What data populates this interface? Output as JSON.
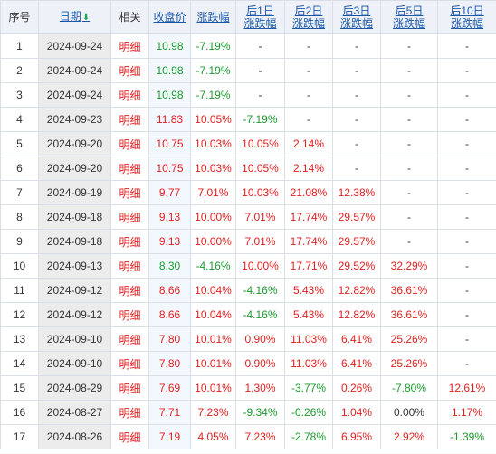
{
  "headers": {
    "idx": "序号",
    "date": "日期",
    "related": "相关",
    "close": "收盘价",
    "change": "涨跌幅",
    "d1": [
      "后1日",
      "涨跌幅"
    ],
    "d2": [
      "后2日",
      "涨跌幅"
    ],
    "d3": [
      "后3日",
      "涨跌幅"
    ],
    "d5": [
      "后5日",
      "涨跌幅"
    ],
    "d10": [
      "后10日",
      "涨跌幅"
    ]
  },
  "detail_label": "明细",
  "colors": {
    "up": "#e02020",
    "down": "#1b9a2e",
    "flat": "#333333",
    "link": "#1a57a8"
  },
  "rows": [
    {
      "idx": "1",
      "date": "2024-09-24",
      "close": "10.98",
      "change": "-7.19%",
      "d1": "-",
      "d2": "-",
      "d3": "-",
      "d5": "-",
      "d10": "-"
    },
    {
      "idx": "2",
      "date": "2024-09-24",
      "close": "10.98",
      "change": "-7.19%",
      "d1": "-",
      "d2": "-",
      "d3": "-",
      "d5": "-",
      "d10": "-"
    },
    {
      "idx": "3",
      "date": "2024-09-24",
      "close": "10.98",
      "change": "-7.19%",
      "d1": "-",
      "d2": "-",
      "d3": "-",
      "d5": "-",
      "d10": "-"
    },
    {
      "idx": "4",
      "date": "2024-09-23",
      "close": "11.83",
      "change": "10.05%",
      "d1": "-7.19%",
      "d2": "-",
      "d3": "-",
      "d5": "-",
      "d10": "-"
    },
    {
      "idx": "5",
      "date": "2024-09-20",
      "close": "10.75",
      "change": "10.03%",
      "d1": "10.05%",
      "d2": "2.14%",
      "d3": "-",
      "d5": "-",
      "d10": "-"
    },
    {
      "idx": "6",
      "date": "2024-09-20",
      "close": "10.75",
      "change": "10.03%",
      "d1": "10.05%",
      "d2": "2.14%",
      "d3": "-",
      "d5": "-",
      "d10": "-"
    },
    {
      "idx": "7",
      "date": "2024-09-19",
      "close": "9.77",
      "change": "7.01%",
      "d1": "10.03%",
      "d2": "21.08%",
      "d3": "12.38%",
      "d5": "-",
      "d10": "-"
    },
    {
      "idx": "8",
      "date": "2024-09-18",
      "close": "9.13",
      "change": "10.00%",
      "d1": "7.01%",
      "d2": "17.74%",
      "d3": "29.57%",
      "d5": "-",
      "d10": "-"
    },
    {
      "idx": "9",
      "date": "2024-09-18",
      "close": "9.13",
      "change": "10.00%",
      "d1": "7.01%",
      "d2": "17.74%",
      "d3": "29.57%",
      "d5": "-",
      "d10": "-"
    },
    {
      "idx": "10",
      "date": "2024-09-13",
      "close": "8.30",
      "change": "-4.16%",
      "d1": "10.00%",
      "d2": "17.71%",
      "d3": "29.52%",
      "d5": "32.29%",
      "d10": "-"
    },
    {
      "idx": "11",
      "date": "2024-09-12",
      "close": "8.66",
      "change": "10.04%",
      "d1": "-4.16%",
      "d2": "5.43%",
      "d3": "12.82%",
      "d5": "36.61%",
      "d10": "-"
    },
    {
      "idx": "12",
      "date": "2024-09-12",
      "close": "8.66",
      "change": "10.04%",
      "d1": "-4.16%",
      "d2": "5.43%",
      "d3": "12.82%",
      "d5": "36.61%",
      "d10": "-"
    },
    {
      "idx": "13",
      "date": "2024-09-10",
      "close": "7.80",
      "change": "10.01%",
      "d1": "0.90%",
      "d2": "11.03%",
      "d3": "6.41%",
      "d5": "25.26%",
      "d10": "-"
    },
    {
      "idx": "14",
      "date": "2024-09-10",
      "close": "7.80",
      "change": "10.01%",
      "d1": "0.90%",
      "d2": "11.03%",
      "d3": "6.41%",
      "d5": "25.26%",
      "d10": "-"
    },
    {
      "idx": "15",
      "date": "2024-08-29",
      "close": "7.69",
      "change": "10.01%",
      "d1": "1.30%",
      "d2": "-3.77%",
      "d3": "0.26%",
      "d5": "-7.80%",
      "d10": "12.61%"
    },
    {
      "idx": "16",
      "date": "2024-08-27",
      "close": "7.71",
      "change": "7.23%",
      "d1": "-9.34%",
      "d2": "-0.26%",
      "d3": "1.04%",
      "d5": "0.00%",
      "d10": "1.17%"
    },
    {
      "idx": "17",
      "date": "2024-08-26",
      "close": "7.19",
      "change": "4.05%",
      "d1": "7.23%",
      "d2": "-2.78%",
      "d3": "6.95%",
      "d5": "2.92%",
      "d10": "-1.39%"
    }
  ]
}
